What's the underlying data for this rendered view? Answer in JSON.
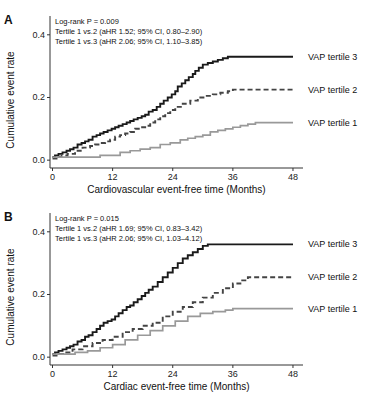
{
  "chart_data": [
    {
      "type": "step",
      "title": "A",
      "x_label": "Cardiovascular event-free time (Months)",
      "y_label": "Cumulative event rate",
      "annotation": "Log-rank P = 0.009\nTertile 1 vs.2 (aHR 1.52; 95% CI, 0.80–2.90)\nTertile 1 vs.3 (aHR 2.06; 95% CI, 1.10–3.85)",
      "xlim": [
        -0.5,
        50
      ],
      "ylim": [
        -0.025,
        0.46
      ],
      "xticks": [
        0,
        12,
        24,
        36,
        48
      ],
      "yticks": [
        {
          "value": 0,
          "label": "0.0"
        },
        0.2,
        0.4
      ],
      "series": [
        {
          "name": "VAP tertile 3",
          "color": "#1a1a1a",
          "line_style": "solid",
          "x": [
            0,
            0.5,
            1.2,
            2.0,
            2.8,
            3.5,
            4.2,
            5.0,
            5.8,
            6.5,
            7.2,
            8.0,
            8.8,
            9.5,
            10.2,
            11.0,
            11.8,
            12.5,
            13.2,
            14.0,
            14.8,
            15.5,
            16.2,
            17.0,
            17.8,
            18.5,
            19.2,
            20.0,
            20.8,
            21.5,
            22.2,
            23.0,
            23.8,
            24.5,
            25.0,
            25.8,
            26.5,
            27.2,
            28.0,
            28.5,
            29.2,
            30.0,
            31.0,
            32.0,
            33.0,
            34.0,
            35.0,
            36.0,
            37.0,
            38.0,
            39.0,
            40.0,
            48.0
          ],
          "values": [
            0.01,
            0.015,
            0.02,
            0.025,
            0.03,
            0.035,
            0.04,
            0.05,
            0.055,
            0.06,
            0.065,
            0.075,
            0.08,
            0.085,
            0.09,
            0.095,
            0.1,
            0.105,
            0.11,
            0.115,
            0.12,
            0.125,
            0.13,
            0.135,
            0.14,
            0.145,
            0.155,
            0.16,
            0.17,
            0.18,
            0.19,
            0.2,
            0.21,
            0.22,
            0.235,
            0.245,
            0.255,
            0.265,
            0.275,
            0.285,
            0.295,
            0.305,
            0.31,
            0.315,
            0.32,
            0.325,
            0.33,
            0.33,
            0.33,
            0.33,
            0.33,
            0.33,
            0.33
          ]
        },
        {
          "name": "VAP tertile 2",
          "color": "#444444",
          "line_style": "dashed",
          "x": [
            0,
            0.8,
            1.8,
            3.0,
            4.5,
            6.0,
            7.5,
            8.5,
            9.5,
            10.5,
            11.5,
            12.5,
            13.5,
            14.5,
            15.5,
            16.5,
            17.5,
            18.5,
            19.5,
            20.5,
            21.5,
            22.5,
            23.5,
            24.5,
            26.0,
            27.5,
            29.0,
            30.5,
            32.0,
            33.5,
            35.0,
            36.0,
            37.0,
            48.0
          ],
          "values": [
            0.005,
            0.01,
            0.015,
            0.02,
            0.03,
            0.04,
            0.045,
            0.05,
            0.055,
            0.06,
            0.065,
            0.075,
            0.08,
            0.085,
            0.09,
            0.1,
            0.105,
            0.11,
            0.12,
            0.13,
            0.14,
            0.15,
            0.16,
            0.17,
            0.18,
            0.19,
            0.2,
            0.205,
            0.21,
            0.215,
            0.22,
            0.225,
            0.225,
            0.225
          ]
        },
        {
          "name": "VAP tertile 1",
          "color": "#999999",
          "line_style": "solid",
          "x": [
            0,
            1.5,
            3.5,
            5.5,
            7.5,
            9.5,
            11.5,
            13.5,
            15.5,
            17.5,
            19.5,
            21.5,
            23.5,
            25.5,
            27.0,
            28.5,
            30.0,
            31.5,
            33.0,
            34.5,
            36.0,
            37.5,
            39.0,
            40.5,
            42.0,
            48.0
          ],
          "values": [
            0.01,
            0.01,
            0.01,
            0.01,
            0.01,
            0.015,
            0.015,
            0.025,
            0.03,
            0.035,
            0.04,
            0.05,
            0.055,
            0.065,
            0.07,
            0.075,
            0.08,
            0.09,
            0.095,
            0.1,
            0.105,
            0.11,
            0.115,
            0.12,
            0.12,
            0.12
          ]
        }
      ]
    },
    {
      "type": "step",
      "title": "B",
      "x_label": "Cardiac event-free time (Months)",
      "y_label": "Cumulative event rate",
      "annotation": "Log-rank P = 0.015\nTertile 1 vs.2 (aHR 1.69; 95% CI, 0.83–3.42)\nTertile 1 vs.3 (aHR 2.06; 95% CI, 1.03–4.12)",
      "xlim": [
        -0.5,
        50
      ],
      "ylim": [
        -0.025,
        0.46
      ],
      "xticks": [
        0,
        12,
        24,
        36,
        48
      ],
      "yticks": [
        {
          "value": 0,
          "label": "0.0"
        },
        0.2,
        0.4
      ],
      "series": [
        {
          "name": "VAP tertile 3",
          "color": "#1a1a1a",
          "line_style": "solid",
          "x": [
            0,
            0.5,
            1.2,
            2.0,
            2.8,
            3.5,
            4.2,
            5.0,
            5.8,
            6.5,
            7.2,
            8.0,
            8.8,
            9.5,
            10.2,
            11.0,
            11.8,
            12.5,
            13.2,
            14.0,
            14.8,
            15.5,
            16.2,
            17.0,
            17.8,
            18.5,
            19.2,
            20.0,
            21.0,
            22.0,
            23.0,
            24.0,
            25.0,
            26.0,
            27.0,
            28.0,
            29.0,
            30.0,
            31.0,
            32.0,
            33.0,
            34.0,
            35.0,
            36.0,
            37.0,
            38.0,
            48.0
          ],
          "values": [
            0.01,
            0.015,
            0.02,
            0.025,
            0.03,
            0.035,
            0.04,
            0.05,
            0.055,
            0.065,
            0.07,
            0.08,
            0.09,
            0.1,
            0.11,
            0.115,
            0.12,
            0.13,
            0.14,
            0.15,
            0.16,
            0.165,
            0.175,
            0.185,
            0.195,
            0.205,
            0.215,
            0.225,
            0.24,
            0.255,
            0.27,
            0.285,
            0.3,
            0.315,
            0.325,
            0.335,
            0.345,
            0.355,
            0.36,
            0.36,
            0.36,
            0.36,
            0.36,
            0.36,
            0.36,
            0.36,
            0.36
          ]
        },
        {
          "name": "VAP tertile 2",
          "color": "#444444",
          "line_style": "dashed",
          "x": [
            0,
            1.0,
            2.5,
            4.0,
            6.0,
            8.0,
            10.0,
            12.0,
            14.0,
            16.0,
            18.0,
            20.0,
            22.0,
            24.0,
            26.0,
            28.0,
            30.0,
            32.0,
            34.0,
            36.0,
            37.5,
            39.0,
            48.0
          ],
          "values": [
            0.005,
            0.01,
            0.015,
            0.025,
            0.035,
            0.045,
            0.055,
            0.065,
            0.08,
            0.09,
            0.1,
            0.11,
            0.13,
            0.145,
            0.16,
            0.175,
            0.19,
            0.205,
            0.22,
            0.235,
            0.245,
            0.255,
            0.255
          ]
        },
        {
          "name": "VAP tertile 1",
          "color": "#999999",
          "line_style": "solid",
          "x": [
            0,
            2.0,
            4.5,
            7.0,
            9.5,
            12.0,
            14.5,
            17.0,
            19.5,
            22.0,
            24.5,
            27.0,
            29.5,
            32.0,
            34.5,
            36.0,
            48.0
          ],
          "values": [
            0.01,
            0.01,
            0.015,
            0.02,
            0.03,
            0.04,
            0.055,
            0.07,
            0.085,
            0.1,
            0.115,
            0.13,
            0.14,
            0.145,
            0.15,
            0.155,
            0.155
          ]
        }
      ]
    }
  ]
}
